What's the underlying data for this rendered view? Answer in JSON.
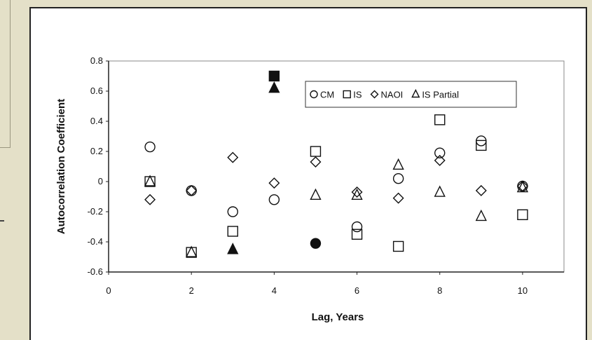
{
  "chart_data": {
    "type": "scatter",
    "xlabel": "Lag, Years",
    "ylabel": "Autocorrelation Coefficient",
    "xlim": [
      0,
      11
    ],
    "ylim": [
      -0.6,
      0.8
    ],
    "x_ticks": [
      "0",
      "2",
      "4",
      "6",
      "8",
      "10"
    ],
    "x_tick_values": [
      0,
      2,
      4,
      6,
      8,
      10
    ],
    "y_ticks": [
      "-0.6",
      "-0.4",
      "-0.2",
      "0",
      "0.2",
      "0.4",
      "0.6",
      "0.8"
    ],
    "y_tick_values": [
      -0.6,
      -0.4,
      -0.2,
      0,
      0.2,
      0.4,
      0.6,
      0.8
    ],
    "grid": false,
    "legend_position": "top-right",
    "legend": [
      {
        "label": "CM",
        "marker": "circle"
      },
      {
        "label": "IS",
        "marker": "square"
      },
      {
        "label": "NAOI",
        "marker": "diamond"
      },
      {
        "label": "IS Partial",
        "marker": "triangle"
      }
    ],
    "series": [
      {
        "name": "CM",
        "marker": "circle",
        "points": [
          {
            "x": 1,
            "y": 0.23,
            "filled": false
          },
          {
            "x": 2,
            "y": -0.06,
            "filled": false
          },
          {
            "x": 3,
            "y": -0.2,
            "filled": false
          },
          {
            "x": 4,
            "y": -0.12,
            "filled": false
          },
          {
            "x": 5,
            "y": -0.41,
            "filled": true
          },
          {
            "x": 6,
            "y": -0.3,
            "filled": false
          },
          {
            "x": 7,
            "y": 0.02,
            "filled": false
          },
          {
            "x": 8,
            "y": 0.19,
            "filled": false
          },
          {
            "x": 9,
            "y": 0.27,
            "filled": false
          },
          {
            "x": 10,
            "y": -0.03,
            "filled": false
          }
        ]
      },
      {
        "name": "IS",
        "marker": "square",
        "points": [
          {
            "x": 1,
            "y": 0.0,
            "filled": false
          },
          {
            "x": 2,
            "y": -0.47,
            "filled": false
          },
          {
            "x": 3,
            "y": -0.33,
            "filled": false
          },
          {
            "x": 4,
            "y": 0.7,
            "filled": true
          },
          {
            "x": 5,
            "y": 0.2,
            "filled": false
          },
          {
            "x": 6,
            "y": -0.35,
            "filled": false
          },
          {
            "x": 7,
            "y": -0.43,
            "filled": false
          },
          {
            "x": 8,
            "y": 0.41,
            "filled": false
          },
          {
            "x": 9,
            "y": 0.24,
            "filled": false
          },
          {
            "x": 10,
            "y": -0.22,
            "filled": false
          }
        ]
      },
      {
        "name": "NAOI",
        "marker": "diamond",
        "points": [
          {
            "x": 1,
            "y": -0.12,
            "filled": false
          },
          {
            "x": 2,
            "y": -0.06,
            "filled": false
          },
          {
            "x": 3,
            "y": 0.16,
            "filled": false
          },
          {
            "x": 4,
            "y": -0.01,
            "filled": false
          },
          {
            "x": 5,
            "y": 0.13,
            "filled": false
          },
          {
            "x": 6,
            "y": -0.07,
            "filled": false
          },
          {
            "x": 7,
            "y": -0.11,
            "filled": false
          },
          {
            "x": 8,
            "y": 0.14,
            "filled": false
          },
          {
            "x": 9,
            "y": -0.06,
            "filled": false
          },
          {
            "x": 10,
            "y": -0.03,
            "filled": false
          }
        ]
      },
      {
        "name": "IS Partial",
        "marker": "triangle",
        "points": [
          {
            "x": 1,
            "y": 0.0,
            "filled": false
          },
          {
            "x": 2,
            "y": -0.47,
            "filled": false
          },
          {
            "x": 3,
            "y": -0.45,
            "filled": true
          },
          {
            "x": 4,
            "y": 0.62,
            "filled": true
          },
          {
            "x": 5,
            "y": -0.09,
            "filled": false
          },
          {
            "x": 6,
            "y": -0.09,
            "filled": false
          },
          {
            "x": 7,
            "y": 0.11,
            "filled": false
          },
          {
            "x": 8,
            "y": -0.07,
            "filled": false
          },
          {
            "x": 9,
            "y": -0.23,
            "filled": false
          },
          {
            "x": 10,
            "y": -0.04,
            "filled": false
          }
        ]
      }
    ]
  }
}
